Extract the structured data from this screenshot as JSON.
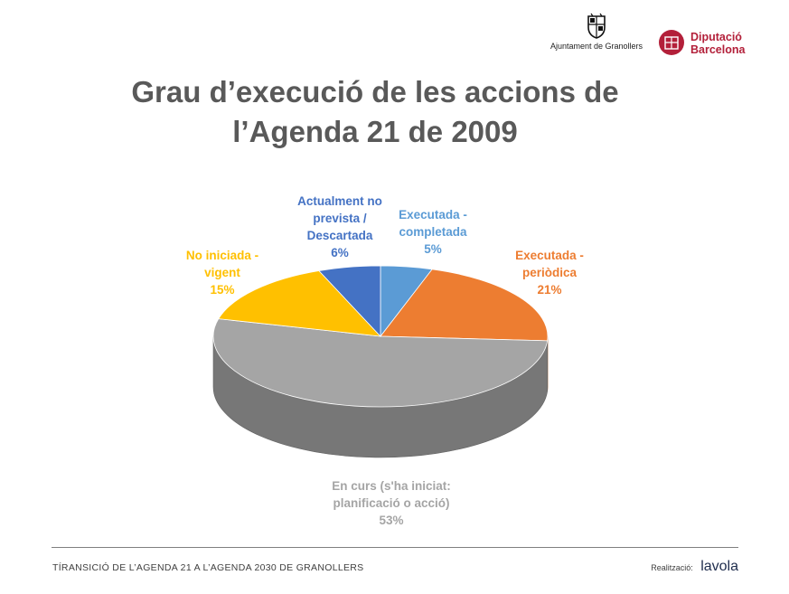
{
  "header": {
    "logo_granollers_caption": "Ajuntament de Granollers",
    "logo_diputacio_line1": "Diputació",
    "logo_diputacio_line2": "Barcelona"
  },
  "title_line1": "Grau d’execució de les accions de",
  "title_line2": "l’Agenda 21 de 2009",
  "chart_data": {
    "type": "pie",
    "title": "Grau d’execució de les accions de l’Agenda 21 de 2009",
    "three_d": true,
    "slices": [
      {
        "label_lines": [
          "Executada -",
          "completada"
        ],
        "value": 5,
        "value_label": "5%",
        "color": "#5b9bd5"
      },
      {
        "label_lines": [
          "Executada -",
          "periòdica"
        ],
        "value": 21,
        "value_label": "21%",
        "color": "#ed7d31"
      },
      {
        "label_lines": [
          "En curs (s'ha iniciat:",
          "planificació o acció)"
        ],
        "value": 53,
        "value_label": "53%",
        "color": "#a5a5a5"
      },
      {
        "label_lines": [
          "No iniciada -",
          "vigent"
        ],
        "value": 15,
        "value_label": "15%",
        "color": "#ffc000"
      },
      {
        "label_lines": [
          "Actualment no",
          "prevista /",
          "Descartada"
        ],
        "value": 6,
        "value_label": "6%",
        "color": "#4472c4"
      }
    ]
  },
  "footer": {
    "left_text": "TÍRANSICIÓ DE L’AGENDA 21 A L’AGENDA 2030 DE GRANOLLERS",
    "realitzacio_label": "Realització:",
    "brand": "lavola"
  }
}
